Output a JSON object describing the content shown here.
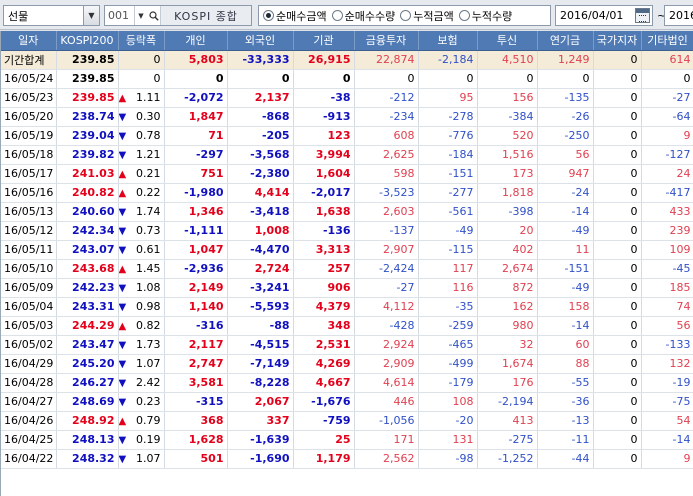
{
  "toolbar": {
    "market_select": "선물",
    "code": "001",
    "index_name": "KOSPI 종합",
    "radio_options": [
      {
        "label": "순매수금액",
        "checked": true
      },
      {
        "label": "순매수수량",
        "checked": false
      },
      {
        "label": "누적금액",
        "checked": false
      },
      {
        "label": "누적수량",
        "checked": false
      }
    ],
    "date_from": "2016/04/01",
    "date_to": "2016/"
  },
  "columns": [
    "일자",
    "KOSPI200",
    "등락폭",
    "개인",
    "외국인",
    "기관",
    "금융투자",
    "보험",
    "투신",
    "연기금",
    "국가지자",
    "기타법인"
  ],
  "summary": {
    "label": "기간합계",
    "kospi": "239.85",
    "change": "0",
    "values": [
      "5,803",
      "-33,333",
      "26,915",
      "22,874",
      "-2,184",
      "4,510",
      "1,249",
      "0",
      "614"
    ]
  },
  "rows": [
    {
      "date": "16/05/24",
      "kospi": "239.85",
      "dir": "none",
      "change": "0",
      "values": [
        "0",
        "0",
        "0",
        "0",
        "0",
        "0",
        "0",
        "0",
        "0"
      ]
    },
    {
      "date": "16/05/23",
      "kospi": "239.85",
      "dir": "up",
      "change": "1.11",
      "values": [
        "-2,072",
        "2,137",
        "-38",
        "-212",
        "95",
        "156",
        "-135",
        "0",
        "-27"
      ]
    },
    {
      "date": "16/05/20",
      "kospi": "238.74",
      "dir": "down",
      "change": "0.30",
      "values": [
        "1,847",
        "-868",
        "-913",
        "-234",
        "-278",
        "-384",
        "-26",
        "0",
        "-64"
      ]
    },
    {
      "date": "16/05/19",
      "kospi": "239.04",
      "dir": "down",
      "change": "0.78",
      "values": [
        "71",
        "-205",
        "123",
        "608",
        "-776",
        "520",
        "-250",
        "0",
        "9"
      ]
    },
    {
      "date": "16/05/18",
      "kospi": "239.82",
      "dir": "down",
      "change": "1.21",
      "values": [
        "-297",
        "-3,568",
        "3,994",
        "2,625",
        "-184",
        "1,516",
        "56",
        "0",
        "-127"
      ]
    },
    {
      "date": "16/05/17",
      "kospi": "241.03",
      "dir": "up",
      "change": "0.21",
      "values": [
        "751",
        "-2,380",
        "1,604",
        "598",
        "-151",
        "173",
        "947",
        "0",
        "24"
      ]
    },
    {
      "date": "16/05/16",
      "kospi": "240.82",
      "dir": "up",
      "change": "0.22",
      "values": [
        "-1,980",
        "4,414",
        "-2,017",
        "-3,523",
        "-277",
        "1,818",
        "-24",
        "0",
        "-417"
      ]
    },
    {
      "date": "16/05/13",
      "kospi": "240.60",
      "dir": "down",
      "change": "1.74",
      "values": [
        "1,346",
        "-3,418",
        "1,638",
        "2,603",
        "-561",
        "-398",
        "-14",
        "0",
        "433"
      ]
    },
    {
      "date": "16/05/12",
      "kospi": "242.34",
      "dir": "down",
      "change": "0.73",
      "values": [
        "-1,111",
        "1,008",
        "-136",
        "-137",
        "-49",
        "20",
        "-49",
        "0",
        "239"
      ]
    },
    {
      "date": "16/05/11",
      "kospi": "243.07",
      "dir": "down",
      "change": "0.61",
      "values": [
        "1,047",
        "-4,470",
        "3,313",
        "2,907",
        "-115",
        "402",
        "11",
        "0",
        "109"
      ]
    },
    {
      "date": "16/05/10",
      "kospi": "243.68",
      "dir": "up",
      "change": "1.45",
      "values": [
        "-2,936",
        "2,724",
        "257",
        "-2,424",
        "117",
        "2,674",
        "-151",
        "0",
        "-45"
      ]
    },
    {
      "date": "16/05/09",
      "kospi": "242.23",
      "dir": "down",
      "change": "1.08",
      "values": [
        "2,149",
        "-3,241",
        "906",
        "-27",
        "116",
        "872",
        "-49",
        "0",
        "185"
      ]
    },
    {
      "date": "16/05/04",
      "kospi": "243.31",
      "dir": "down",
      "change": "0.98",
      "values": [
        "1,140",
        "-5,593",
        "4,379",
        "4,112",
        "-35",
        "162",
        "158",
        "0",
        "74"
      ]
    },
    {
      "date": "16/05/03",
      "kospi": "244.29",
      "dir": "up",
      "change": "0.82",
      "values": [
        "-316",
        "-88",
        "348",
        "-428",
        "-259",
        "980",
        "-14",
        "0",
        "56"
      ]
    },
    {
      "date": "16/05/02",
      "kospi": "243.47",
      "dir": "down",
      "change": "1.73",
      "values": [
        "2,117",
        "-4,515",
        "2,531",
        "2,924",
        "-465",
        "32",
        "60",
        "0",
        "-133"
      ]
    },
    {
      "date": "16/04/29",
      "kospi": "245.20",
      "dir": "down",
      "change": "1.07",
      "values": [
        "2,747",
        "-7,149",
        "4,269",
        "2,909",
        "-499",
        "1,674",
        "88",
        "0",
        "132"
      ]
    },
    {
      "date": "16/04/28",
      "kospi": "246.27",
      "dir": "down",
      "change": "2.42",
      "values": [
        "3,581",
        "-8,228",
        "4,667",
        "4,614",
        "-179",
        "176",
        "-55",
        "0",
        "-19"
      ]
    },
    {
      "date": "16/04/27",
      "kospi": "248.69",
      "dir": "down",
      "change": "0.23",
      "values": [
        "-315",
        "2,067",
        "-1,676",
        "446",
        "108",
        "-2,194",
        "-36",
        "0",
        "-75"
      ]
    },
    {
      "date": "16/04/26",
      "kospi": "248.92",
      "dir": "up",
      "change": "0.79",
      "values": [
        "368",
        "337",
        "-759",
        "-1,056",
        "-20",
        "413",
        "-13",
        "0",
        "54"
      ]
    },
    {
      "date": "16/04/25",
      "kospi": "248.13",
      "dir": "down",
      "change": "0.19",
      "values": [
        "1,628",
        "-1,639",
        "25",
        "171",
        "131",
        "-275",
        "-11",
        "0",
        "-14"
      ]
    },
    {
      "date": "16/04/22",
      "kospi": "248.32",
      "dir": "down",
      "change": "1.07",
      "values": [
        "501",
        "-1,690",
        "1,179",
        "2,562",
        "-98",
        "-1,252",
        "-44",
        "0",
        "9"
      ]
    }
  ],
  "colors": {
    "header_bg": "#4f7ab4",
    "up": "#e4001b",
    "down": "#1010c0",
    "summary_bg": "#f4ecd8"
  }
}
